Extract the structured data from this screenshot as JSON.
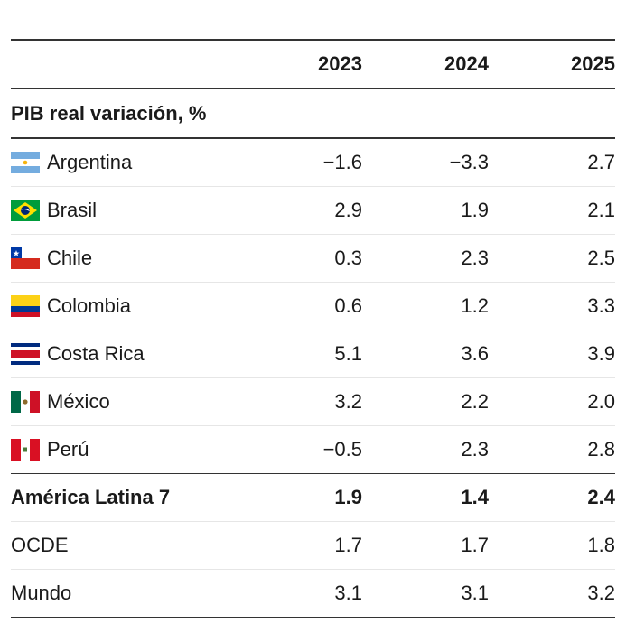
{
  "table": {
    "header": {
      "cols": [
        "2023",
        "2024",
        "2025"
      ]
    },
    "section_title": "PIB real variación, %",
    "countries": [
      {
        "name": "Argentina",
        "flag": "argentina-flag-icon",
        "values": [
          "−1.6",
          "−3.3",
          "2.7"
        ]
      },
      {
        "name": "Brasil",
        "flag": "brazil-flag-icon",
        "values": [
          "2.9",
          "1.9",
          "2.1"
        ]
      },
      {
        "name": "Chile",
        "flag": "chile-flag-icon",
        "values": [
          "0.3",
          "2.3",
          "2.5"
        ]
      },
      {
        "name": "Colombia",
        "flag": "colombia-flag-icon",
        "values": [
          "0.6",
          "1.2",
          "3.3"
        ]
      },
      {
        "name": "Costa Rica",
        "flag": "costa-rica-flag-icon",
        "values": [
          "5.1",
          "3.6",
          "3.9"
        ]
      },
      {
        "name": "México",
        "flag": "mexico-flag-icon",
        "values": [
          "3.2",
          "2.2",
          "2.0"
        ]
      },
      {
        "name": "Perú",
        "flag": "peru-flag-icon",
        "values": [
          "−0.5",
          "2.3",
          "2.8"
        ]
      }
    ],
    "aggregates": [
      {
        "name": "América Latina 7",
        "values": [
          "1.9",
          "1.4",
          "2.4"
        ],
        "bold": true
      },
      {
        "name": "OCDE",
        "values": [
          "1.7",
          "1.7",
          "1.8"
        ],
        "bold": false
      },
      {
        "name": "Mundo",
        "values": [
          "3.1",
          "3.1",
          "3.2"
        ],
        "bold": false
      }
    ]
  },
  "colors": {
    "rule": "#333333",
    "row_divider": "#e6e6e6"
  }
}
